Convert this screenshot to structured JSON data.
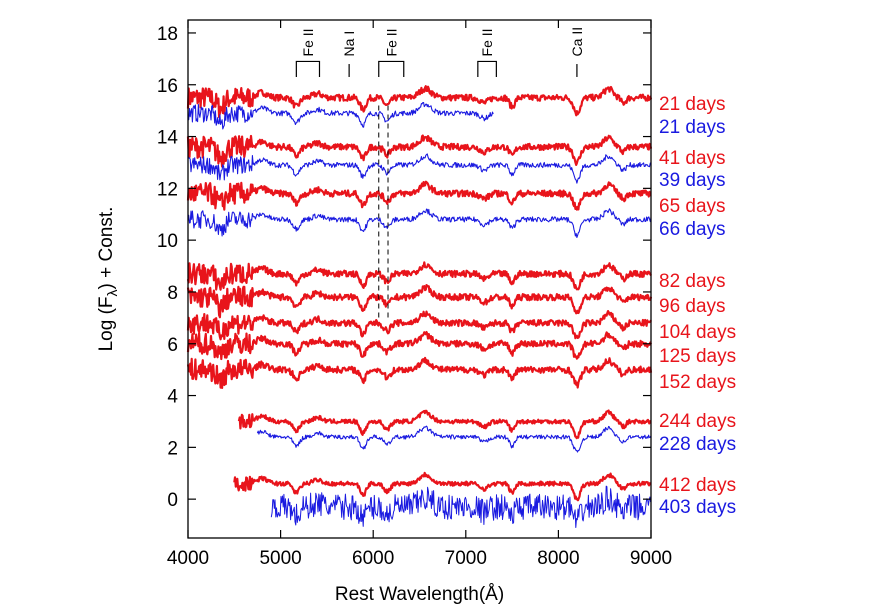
{
  "chart_data": {
    "type": "line",
    "title": "",
    "xlabel": "Rest Wavelength(Å)",
    "ylabel_main": "Log (F",
    "ylabel_sub": "λ",
    "ylabel_tail": ") + Const.",
    "xlim": [
      4000,
      9000
    ],
    "ylim": [
      -1.5,
      18.5
    ],
    "xticks": [
      "4000",
      "5000",
      "6000",
      "7000",
      "8000",
      "9000"
    ],
    "xtick_values": [
      4000,
      5000,
      6000,
      7000,
      8000,
      9000
    ],
    "yticks": [
      "0",
      "2",
      "4",
      "6",
      "8",
      "10",
      "12",
      "14",
      "16",
      "18"
    ],
    "ytick_values": [
      0,
      2,
      4,
      6,
      8,
      10,
      12,
      14,
      16,
      18
    ],
    "colors": {
      "red": "#e8141b",
      "blue": "#1a1ae0",
      "axis": "#000000"
    },
    "line_identifications": [
      {
        "label": "Fe II",
        "kind": "bracket",
        "x_start": 5170,
        "x_end": 5420
      },
      {
        "label": "Na I",
        "kind": "tick",
        "x": 5740
      },
      {
        "label": "Fe II",
        "kind": "bracket",
        "x_start": 6060,
        "x_end": 6330
      },
      {
        "label": "Fe II",
        "kind": "bracket",
        "x_start": 7130,
        "x_end": 7330
      },
      {
        "label": "Ca II",
        "kind": "tick",
        "x": 8200
      }
    ],
    "dashed_markers": [
      6060,
      6160
    ],
    "dashed_range": [
      7.0,
      15.2
    ],
    "series": [
      {
        "epoch_label": "21 days",
        "color": "red",
        "offset": 15.5,
        "x_start": 4000,
        "x_end": 9000,
        "noise": 0.12,
        "width": 2.2
      },
      {
        "epoch_label": "21 days",
        "color": "blue",
        "offset": 14.9,
        "x_start": 4000,
        "x_end": 7300,
        "noise": 0.1,
        "width": 1.1
      },
      {
        "epoch_label": "41 days",
        "color": "red",
        "offset": 13.6,
        "x_start": 4000,
        "x_end": 9000,
        "noise": 0.12,
        "width": 2.2
      },
      {
        "epoch_label": "39 days",
        "color": "blue",
        "offset": 12.9,
        "x_start": 4000,
        "x_end": 9000,
        "noise": 0.1,
        "width": 1.1
      },
      {
        "epoch_label": "65 days",
        "color": "red",
        "offset": 11.8,
        "x_start": 4000,
        "x_end": 9000,
        "noise": 0.12,
        "width": 2.2
      },
      {
        "epoch_label": "66 days",
        "color": "blue",
        "offset": 10.8,
        "x_start": 4000,
        "x_end": 9000,
        "noise": 0.1,
        "width": 1.1
      },
      {
        "epoch_label": "82 days",
        "color": "red",
        "offset": 8.7,
        "x_start": 4000,
        "x_end": 9000,
        "noise": 0.12,
        "width": 2.2
      },
      {
        "epoch_label": "96 days",
        "color": "red",
        "offset": 7.8,
        "x_start": 4000,
        "x_end": 9000,
        "noise": 0.12,
        "width": 2.2
      },
      {
        "epoch_label": "104 days",
        "color": "red",
        "offset": 6.8,
        "x_start": 4000,
        "x_end": 9000,
        "noise": 0.12,
        "width": 2.2
      },
      {
        "epoch_label": "125 days",
        "color": "red",
        "offset": 6.0,
        "x_start": 4000,
        "x_end": 9000,
        "noise": 0.12,
        "width": 2.2
      },
      {
        "epoch_label": "152 days",
        "color": "red",
        "offset": 5.0,
        "x_start": 4000,
        "x_end": 9000,
        "noise": 0.12,
        "width": 2.2
      },
      {
        "epoch_label": "244 days",
        "color": "red",
        "offset": 3.0,
        "x_start": 4550,
        "x_end": 9000,
        "noise": 0.08,
        "width": 2.2
      },
      {
        "epoch_label": "228 days",
        "color": "blue",
        "offset": 2.4,
        "x_start": 4750,
        "x_end": 9000,
        "noise": 0.08,
        "width": 1.1
      },
      {
        "epoch_label": "412 days",
        "color": "red",
        "offset": 0.6,
        "x_start": 4500,
        "x_end": 9000,
        "noise": 0.08,
        "width": 2.2
      },
      {
        "epoch_label": "403 days",
        "color": "blue",
        "offset": -0.3,
        "x_start": 4900,
        "x_end": 9000,
        "noise": 0.5,
        "width": 1.0
      }
    ]
  }
}
